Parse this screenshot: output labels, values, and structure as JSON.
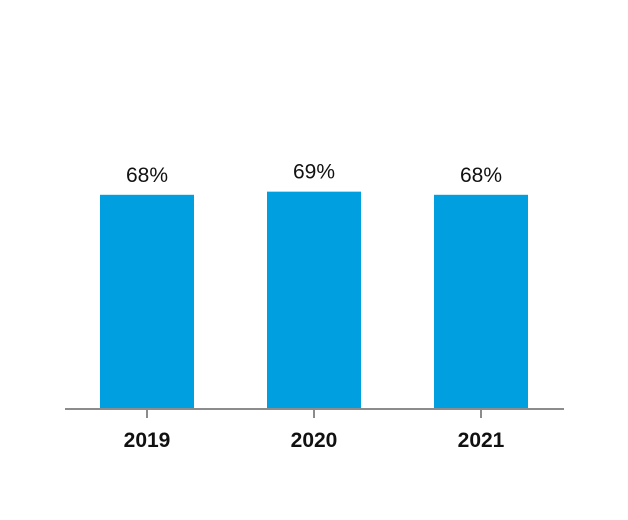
{
  "chart_data": {
    "type": "bar",
    "title": "",
    "xlabel": "",
    "ylabel": "",
    "categories": [
      "2019",
      "2020",
      "2021"
    ],
    "values": [
      68,
      69,
      68
    ],
    "value_labels": [
      "68%",
      "69%",
      "68%"
    ],
    "ylim": [
      0,
      100
    ],
    "grid": false,
    "legend": "none",
    "colors": {
      "bar": "#009FDF",
      "axis": "#8C8C8C",
      "text": "#111111"
    }
  }
}
